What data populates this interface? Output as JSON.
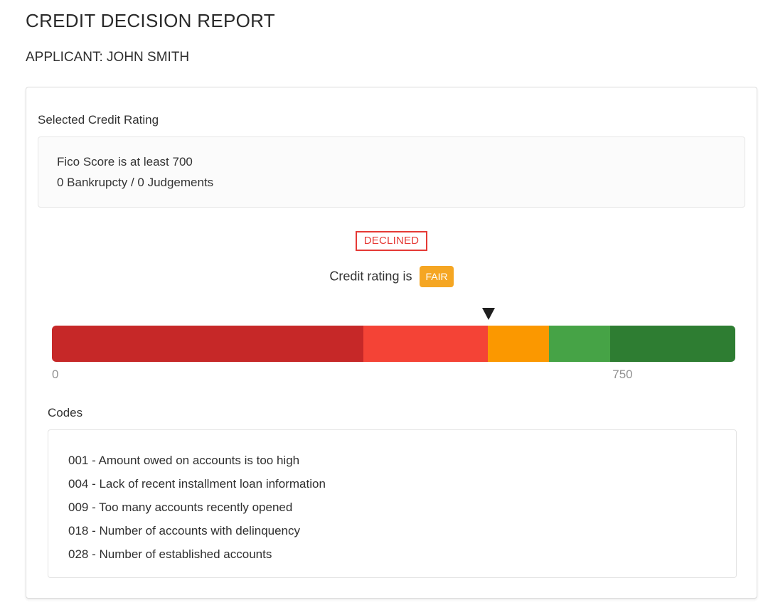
{
  "page": {
    "title": "CREDIT DECISION REPORT",
    "applicant": "APPLICANT: JOHN SMITH"
  },
  "rating_section": {
    "heading": "Selected Credit Rating",
    "criteria": [
      "Fico Score is at least 700",
      "0 Bankrupcty / 0 Judgements"
    ],
    "decision_label": "DECLINED",
    "rating_prefix": "Credit rating is",
    "rating_value": "FAIR"
  },
  "scale": {
    "min_label": "0",
    "max_label": "750",
    "marker_position_pct": 63.9,
    "max_label_position_pct": 83.5,
    "segments": [
      {
        "name": "very-poor",
        "color": "#c62828",
        "width_pct": 45.6
      },
      {
        "name": "poor",
        "color": "#f44336",
        "width_pct": 18.2
      },
      {
        "name": "fair",
        "color": "#fb9800",
        "width_pct": 8.9
      },
      {
        "name": "good",
        "color": "#46a346",
        "width_pct": 9.0
      },
      {
        "name": "excellent",
        "color": "#2e7d32",
        "width_pct": 18.3
      }
    ]
  },
  "codes": {
    "heading": "Codes",
    "items": [
      "001 - Amount owed on accounts is too high",
      "004 - Lack of recent installment loan information",
      "009 - Too many accounts recently opened",
      "018 - Number of accounts with delinquency",
      "028 - Number of established accounts"
    ]
  },
  "colors": {
    "declined_red": "#e53935",
    "fair_badge_orange": "#f5a623",
    "marker_black": "#1f1f1f",
    "axis_label_gray": "#919191"
  }
}
